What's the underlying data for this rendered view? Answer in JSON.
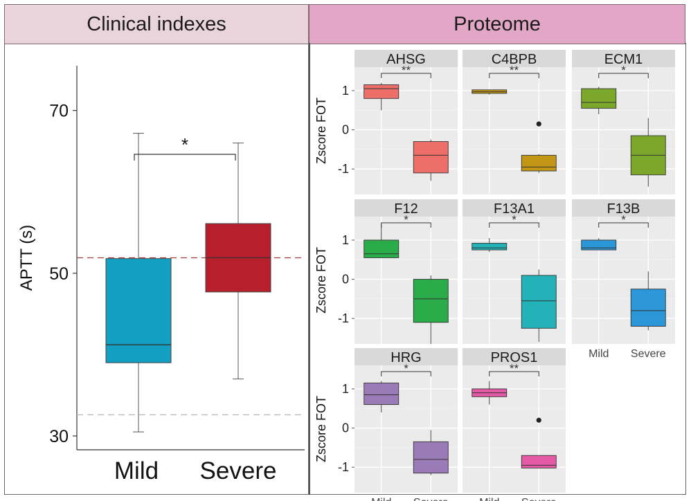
{
  "header": {
    "left_title": "Clinical indexes",
    "right_title": "Proteome"
  },
  "chart_data": [
    {
      "type": "box",
      "title": "Clinical indexes",
      "xlabel": "",
      "ylabel": "APTT (s)",
      "categories": [
        "Mild",
        "Severe"
      ],
      "yticks": [
        30,
        50,
        70
      ],
      "ylim": [
        28.3,
        75.5
      ],
      "boxes": [
        {
          "group": "Mild",
          "color": "#139fc2",
          "whisker_low": 30.5,
          "q1": 39.0,
          "median": 41.2,
          "q3": 51.8,
          "whisker_high": 67.2
        },
        {
          "group": "Severe",
          "color": "#b71f2c",
          "whisker_low": 37.0,
          "q1": 47.7,
          "median": 51.9,
          "q3": 56.1,
          "whisker_high": 66.0
        }
      ],
      "reference_lines": [
        {
          "value": 51.9,
          "color": "#a83a3a",
          "style": "dashed"
        },
        {
          "value": 32.6,
          "color": "#bbbbbb",
          "style": "dashed"
        }
      ],
      "significance": "*"
    },
    {
      "type": "box",
      "title": "Proteome",
      "ylabel": "Zscore FOT",
      "categories": [
        "Mild",
        "Severe"
      ],
      "yticks": [
        1,
        0,
        -1
      ],
      "ylim": [
        -1.65,
        1.6
      ],
      "facets": [
        {
          "name": "AHSG",
          "sig": "**",
          "color": "#ee6f6a",
          "mild": {
            "lw": 0.5,
            "q1": 0.8,
            "med": 1.05,
            "q3": 1.15,
            "uw": 1.2
          },
          "severe": {
            "lw": -1.3,
            "q1": -1.1,
            "med": -0.65,
            "q3": -0.3,
            "uw": -0.25
          },
          "outliers": []
        },
        {
          "name": "C4BPB",
          "sig": "**",
          "color": "#c39616",
          "mild": {
            "lw": 0.9,
            "q1": 0.93,
            "med": 0.97,
            "q3": 1.02,
            "uw": 1.02
          },
          "severe": {
            "lw": -1.1,
            "q1": -1.05,
            "med": -0.95,
            "q3": -0.65,
            "uw": -0.62
          },
          "outliers": [
            0.15
          ]
        },
        {
          "name": "ECM1",
          "sig": "*",
          "color": "#7ba82a",
          "mild": {
            "lw": 0.4,
            "q1": 0.55,
            "med": 0.7,
            "q3": 1.05,
            "uw": 1.1
          },
          "severe": {
            "lw": -1.45,
            "q1": -1.15,
            "med": -0.65,
            "q3": -0.15,
            "uw": 0.3
          },
          "outliers": []
        },
        {
          "name": "F12",
          "sig": "*",
          "color": "#2aac4a",
          "mild": {
            "lw": 0.55,
            "q1": 0.55,
            "med": 0.65,
            "q3": 1.0,
            "uw": 1.4
          },
          "severe": {
            "lw": -1.65,
            "q1": -1.1,
            "med": -0.5,
            "q3": 0.0,
            "uw": 0.1
          },
          "outliers": []
        },
        {
          "name": "F13A1",
          "sig": "*",
          "color": "#22b2b8",
          "mild": {
            "lw": 0.7,
            "q1": 0.75,
            "med": 0.8,
            "q3": 0.92,
            "uw": 1.05
          },
          "severe": {
            "lw": -1.6,
            "q1": -1.25,
            "med": -0.55,
            "q3": 0.1,
            "uw": 0.25
          },
          "outliers": []
        },
        {
          "name": "F13B",
          "sig": "*",
          "color": "#2b96d8",
          "mild": {
            "lw": 0.75,
            "q1": 0.75,
            "med": 0.8,
            "q3": 1.0,
            "uw": 1.05
          },
          "severe": {
            "lw": -1.3,
            "q1": -1.2,
            "med": -0.8,
            "q3": -0.25,
            "uw": 0.2
          },
          "outliers": []
        },
        {
          "name": "HRG",
          "sig": "*",
          "color": "#9b7ab8",
          "mild": {
            "lw": 0.4,
            "q1": 0.6,
            "med": 0.85,
            "q3": 1.15,
            "uw": 1.2
          },
          "severe": {
            "lw": -1.2,
            "q1": -1.15,
            "med": -0.8,
            "q3": -0.35,
            "uw": -0.05
          },
          "outliers": []
        },
        {
          "name": "PROS1",
          "sig": "**",
          "color": "#e45aa6",
          "mild": {
            "lw": 0.6,
            "q1": 0.8,
            "med": 0.9,
            "q3": 1.0,
            "uw": 1.2
          },
          "severe": {
            "lw": -1.02,
            "q1": -1.02,
            "med": -0.95,
            "q3": -0.7,
            "uw": -0.7
          },
          "outliers": [
            0.2
          ]
        }
      ]
    }
  ]
}
